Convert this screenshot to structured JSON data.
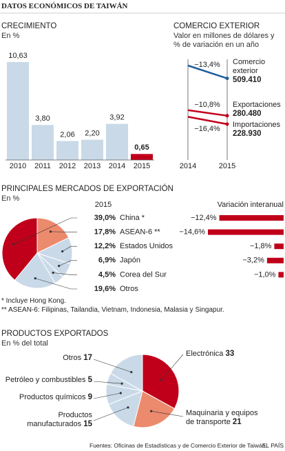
{
  "title": "DATOS ECONÓMICOS DE TAIWÁN",
  "source": "Fuentes: Oficinas de Estadísticas y de Comercio Exterior de Taiwán.",
  "credit": "EL PAÍS",
  "chart_data": [
    {
      "type": "bar",
      "title": "CRECIMIENTO",
      "subtitle": "En %",
      "categories": [
        "2010",
        "2011",
        "2012",
        "2013",
        "2014",
        "2015"
      ],
      "values": [
        10.63,
        3.8,
        2.06,
        2.2,
        3.92,
        0.65
      ],
      "value_labels": [
        "10,63",
        "3,80",
        "2,06",
        "2,20",
        "3,92",
        "0,65"
      ],
      "colors": [
        "#c9d9e8",
        "#c9d9e8",
        "#c9d9e8",
        "#c9d9e8",
        "#c9d9e8",
        "#c0001a"
      ]
    },
    {
      "type": "line",
      "title": "COMERCIO EXTERIOR",
      "subtitle": "Valor en millones de dólares y % de variación en un año",
      "x": [
        "2014",
        "2015"
      ],
      "series": [
        {
          "name": "Comercio exterior",
          "color": "#1f5f9e",
          "values": [
            588233,
            509410
          ],
          "value_labels": [
            null,
            "509.410"
          ],
          "change": -13.4,
          "change_label": "−13,4%"
        },
        {
          "name": "Exportaciones",
          "color": "#c0001a",
          "values": [
            314440,
            280480
          ],
          "value_labels": [
            null,
            "280.480"
          ],
          "change": -10.8,
          "change_label": "−10,8%"
        },
        {
          "name": "Importaciones",
          "color": "#c0001a",
          "values": [
            273840,
            228930
          ],
          "value_labels": [
            null,
            "228.930"
          ],
          "change": -16.4,
          "change_label": "−16,4%"
        }
      ]
    },
    {
      "type": "pie",
      "title": "PRINCIPALES MERCADOS DE EXPORTACIÓN",
      "subtitle": "En %",
      "year": "2015",
      "categories": [
        "China *",
        "ASEAN-6 **",
        "Estados Unidos",
        "Japón",
        "Corea del Sur",
        "Otros"
      ],
      "values": [
        39.0,
        17.8,
        12.2,
        6.9,
        4.5,
        19.6
      ],
      "value_labels": [
        "39,0%",
        "17,8%",
        "12,2%",
        "6,9%",
        "4,5%",
        "19,6%"
      ],
      "colors": [
        "#c0001a",
        "#ec8a6d",
        "#c9d9e8",
        "#c9d9e8",
        "#c9d9e8",
        "#c9d9e8"
      ],
      "change_title": "Variación interanual",
      "changes": [
        -12.4,
        -14.6,
        -1.8,
        -3.2,
        -1.0,
        null
      ],
      "change_labels": [
        "−12,4%",
        "−14,6%",
        "−1,8%",
        "−3,2%",
        "−1,0%",
        null
      ],
      "change_color": "#c0001a",
      "notes": [
        "* Incluye Hong Kong.",
        "** ASEAN-6: Filipinas, Tailandia, Vietnam, Indonesia, Malasia y Singapur."
      ]
    },
    {
      "type": "pie",
      "title": "PRODUCTOS EXPORTADOS",
      "subtitle": "En % del total",
      "categories": [
        "Electrónica",
        "Maquinaria y equipos de transporte",
        "Productos manufacturados",
        "Productos químicos",
        "Petróleo y combustibles",
        "Otros"
      ],
      "values": [
        33,
        21,
        15,
        9,
        5,
        17
      ],
      "colors": [
        "#c0001a",
        "#ec8a6d",
        "#c9d9e8",
        "#c9d9e8",
        "#c9d9e8",
        "#c9d9e8"
      ]
    }
  ]
}
